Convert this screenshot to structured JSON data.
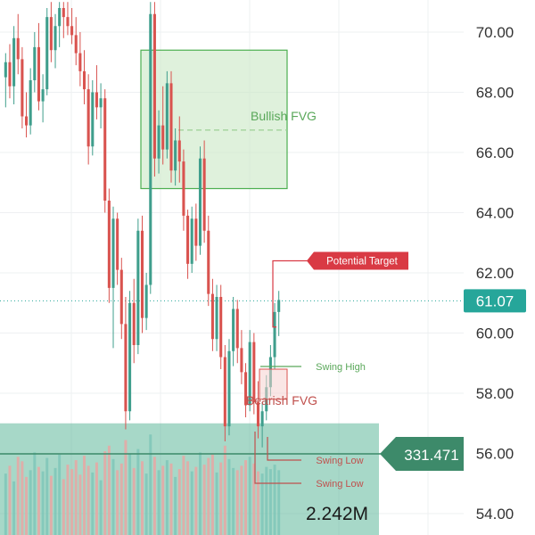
{
  "colors": {
    "bull": "#3f9e8c",
    "bear": "#d9534f",
    "fvg_green": "#4caf50",
    "fvg_fill": "#c9e8c4",
    "volume_zone": "#5fb89a",
    "price_tag": "#26a69a",
    "target_tag": "#d93a44",
    "grid": "#eef0f2"
  },
  "annotations": {
    "bullish_fvg": "Bullish FVG",
    "bearish_fvg": "Bearish FVG",
    "potential_target": "Potential Target",
    "swing_high": "Swing High",
    "swing_low_1": "Swing Low",
    "swing_low_2": "Swing Low",
    "volume_value": "2.242M",
    "volume_tag": "331.471",
    "last_price": "61.07"
  },
  "chart_data": {
    "type": "candlestick",
    "y_axis": {
      "range": [
        53.5,
        71.0
      ],
      "ticks": [
        "70.00",
        "68.00",
        "66.00",
        "64.00",
        "62.00",
        "60.00",
        "58.00",
        "56.00",
        "54.00"
      ],
      "tick_values": [
        70,
        68,
        66,
        64,
        62,
        60,
        58,
        56,
        54
      ]
    },
    "last_price": 61.07,
    "zones": {
      "bullish_fvg": {
        "from": 64.8,
        "to": 69.4
      },
      "bearish_fvg": {
        "from": 57.8,
        "to": 58.8
      },
      "volume_profile": {
        "from": 53.5,
        "to": 57.0
      }
    },
    "potential_target": 62.4,
    "swing_high": 58.9,
    "swing_low_1": 55.8,
    "swing_low_2": 55.1,
    "candles": [
      [
        68.5,
        69.3,
        67.5,
        69.0
      ],
      [
        69.0,
        69.6,
        67.8,
        68.2
      ],
      [
        68.2,
        70.2,
        67.6,
        69.8
      ],
      [
        69.8,
        70.6,
        68.6,
        69.1
      ],
      [
        69.1,
        69.5,
        66.8,
        67.2
      ],
      [
        67.2,
        68.0,
        66.5,
        66.9
      ],
      [
        66.9,
        68.8,
        66.6,
        68.4
      ],
      [
        68.4,
        70.0,
        68.0,
        69.5
      ],
      [
        69.5,
        70.3,
        67.4,
        67.7
      ],
      [
        67.7,
        68.6,
        67.0,
        68.1
      ],
      [
        68.1,
        70.8,
        67.9,
        70.5
      ],
      [
        70.5,
        71.0,
        69.0,
        69.4
      ],
      [
        69.4,
        70.6,
        68.8,
        70.2
      ],
      [
        70.2,
        71.0,
        69.5,
        70.8
      ],
      [
        70.8,
        71.0,
        69.8,
        70.5
      ],
      [
        70.5,
        71.0,
        69.9,
        70.2
      ],
      [
        70.2,
        70.8,
        69.6,
        69.9
      ],
      [
        69.9,
        70.5,
        68.9,
        69.3
      ],
      [
        69.3,
        70.0,
        68.2,
        68.7
      ],
      [
        68.7,
        69.4,
        67.6,
        68.1
      ],
      [
        68.1,
        68.6,
        65.6,
        66.2
      ],
      [
        66.2,
        68.4,
        65.9,
        68.0
      ],
      [
        68.0,
        68.9,
        67.1,
        67.5
      ],
      [
        67.5,
        68.3,
        66.8,
        67.8
      ],
      [
        67.8,
        68.1,
        64.0,
        64.4
      ],
      [
        64.4,
        64.8,
        61.0,
        61.5
      ],
      [
        61.5,
        64.2,
        59.5,
        63.8
      ],
      [
        63.8,
        64.0,
        61.6,
        62.1
      ],
      [
        62.1,
        62.5,
        59.8,
        60.3
      ],
      [
        60.3,
        61.2,
        56.8,
        57.4
      ],
      [
        57.4,
        61.4,
        57.1,
        61.0
      ],
      [
        61.0,
        61.8,
        59.0,
        59.6
      ],
      [
        59.6,
        63.8,
        59.3,
        63.4
      ],
      [
        63.4,
        63.9,
        60.0,
        60.5
      ],
      [
        60.5,
        62.0,
        60.1,
        61.6
      ],
      [
        61.6,
        71.0,
        61.3,
        70.6
      ],
      [
        70.6,
        71.0,
        65.2,
        65.8
      ],
      [
        65.8,
        67.4,
        65.3,
        66.9
      ],
      [
        66.9,
        68.2,
        65.6,
        66.1
      ],
      [
        66.1,
        68.7,
        65.8,
        68.3
      ],
      [
        68.3,
        68.7,
        65.0,
        65.4
      ],
      [
        65.4,
        66.8,
        64.9,
        66.4
      ],
      [
        66.4,
        67.2,
        65.0,
        65.7
      ],
      [
        65.7,
        66.1,
        63.4,
        63.9
      ],
      [
        63.9,
        64.1,
        61.8,
        62.3
      ],
      [
        62.3,
        64.2,
        62.0,
        63.8
      ],
      [
        63.8,
        64.3,
        62.4,
        62.9
      ],
      [
        62.9,
        66.2,
        62.6,
        65.8
      ],
      [
        65.8,
        66.4,
        63.0,
        63.4
      ],
      [
        63.4,
        63.9,
        60.9,
        61.3
      ],
      [
        61.3,
        61.8,
        59.4,
        59.8
      ],
      [
        59.8,
        61.6,
        59.4,
        61.2
      ],
      [
        61.2,
        61.6,
        58.8,
        59.2
      ],
      [
        59.2,
        59.6,
        56.4,
        56.9
      ],
      [
        56.9,
        59.8,
        56.6,
        59.4
      ],
      [
        59.4,
        61.2,
        58.9,
        60.8
      ],
      [
        60.8,
        61.1,
        59.0,
        59.5
      ],
      [
        59.5,
        60.1,
        58.3,
        58.7
      ],
      [
        58.7,
        59.0,
        57.2,
        57.6
      ],
      [
        57.6,
        60.1,
        57.4,
        59.7
      ],
      [
        59.7,
        60.0,
        57.3,
        57.7
      ],
      [
        57.7,
        58.4,
        56.5,
        56.9
      ],
      [
        56.9,
        57.7,
        56.2,
        57.4
      ],
      [
        57.4,
        58.6,
        57.1,
        58.2
      ],
      [
        58.2,
        59.6,
        57.9,
        59.2
      ],
      [
        59.2,
        61.0,
        58.8,
        60.7
      ],
      [
        60.7,
        61.4,
        59.9,
        61.1
      ]
    ],
    "volumes": [
      0.55,
      0.62,
      0.48,
      0.7,
      0.66,
      0.52,
      0.58,
      0.74,
      0.61,
      0.57,
      0.69,
      0.53,
      0.6,
      0.72,
      0.5,
      0.63,
      0.59,
      0.67,
      0.54,
      0.71,
      0.62,
      0.56,
      0.65,
      0.49,
      0.75,
      0.8,
      0.68,
      0.58,
      0.64,
      0.85,
      0.73,
      0.6,
      0.77,
      0.66,
      0.55,
      0.9,
      0.7,
      0.58,
      0.62,
      0.67,
      0.64,
      0.52,
      0.59,
      0.71,
      0.66,
      0.57,
      0.61,
      0.74,
      0.63,
      0.69,
      0.72,
      0.56,
      0.65,
      0.8,
      0.68,
      0.6,
      0.58,
      0.62,
      0.67,
      0.7,
      0.64,
      0.57,
      0.55,
      0.61,
      0.59,
      0.63,
      0.58
    ]
  }
}
